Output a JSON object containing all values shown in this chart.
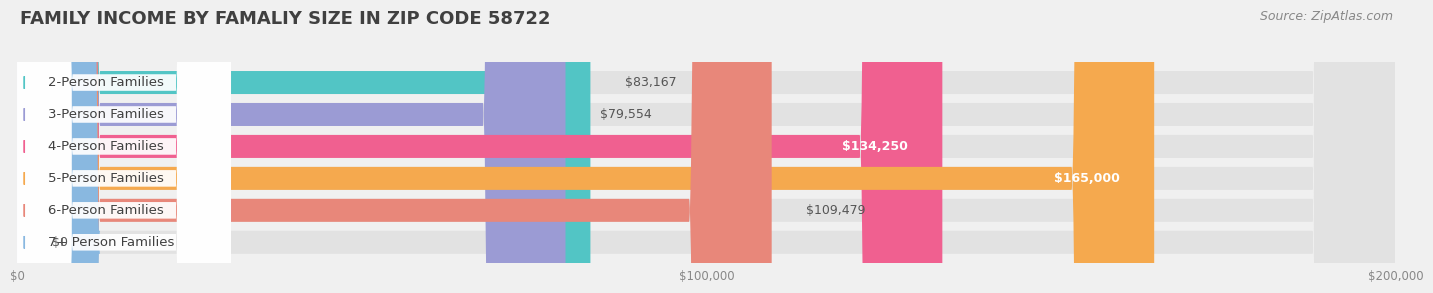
{
  "title": "FAMILY INCOME BY FAMALIY SIZE IN ZIP CODE 58722",
  "source": "Source: ZipAtlas.com",
  "categories": [
    "2-Person Families",
    "3-Person Families",
    "4-Person Families",
    "5-Person Families",
    "6-Person Families",
    "7+ Person Families"
  ],
  "values": [
    83167,
    79554,
    134250,
    165000,
    109479,
    0
  ],
  "bar_colors": [
    "#52c5c5",
    "#9b9bd4",
    "#f06090",
    "#f5a94e",
    "#e8877a",
    "#89b8e0"
  ],
  "value_label_inside": [
    false,
    false,
    true,
    true,
    false,
    false
  ],
  "xlim": [
    0,
    200000
  ],
  "xticks": [
    0,
    100000,
    200000
  ],
  "xtick_labels": [
    "$0",
    "$100,000",
    "$200,000"
  ],
  "value_labels": [
    "$83,167",
    "$79,554",
    "$134,250",
    "$165,000",
    "$109,479",
    "$0"
  ],
  "background_color": "#f0f0f0",
  "bar_bg_color": "#e2e2e2",
  "title_fontsize": 13,
  "source_fontsize": 9,
  "label_fontsize": 9.5,
  "value_fontsize": 9
}
